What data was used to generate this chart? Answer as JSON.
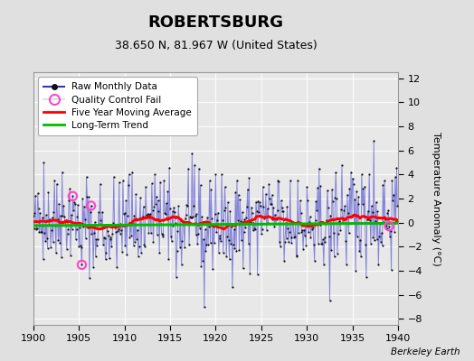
{
  "title": "ROBERTSBURG",
  "subtitle": "38.650 N, 81.967 W (United States)",
  "ylabel": "Temperature Anomaly (°C)",
  "watermark": "Berkeley Earth",
  "xlim": [
    1900,
    1940
  ],
  "ylim": [
    -8.5,
    12.5
  ],
  "yticks": [
    -8,
    -6,
    -4,
    -2,
    0,
    2,
    4,
    6,
    8,
    10,
    12
  ],
  "xticks": [
    1900,
    1905,
    1910,
    1915,
    1920,
    1925,
    1930,
    1935,
    1940
  ],
  "bg_color": "#e0e0e0",
  "plot_bg_color": "#e8e8e8",
  "line_color": "#3333cc",
  "line_alpha": 0.55,
  "dot_color": "#111111",
  "moving_avg_color": "#ff0000",
  "trend_color": "#00bb00",
  "qc_fail_color": "#ff44cc",
  "trend_slope": 0.005,
  "trend_intercept": -0.25,
  "seed": 42
}
